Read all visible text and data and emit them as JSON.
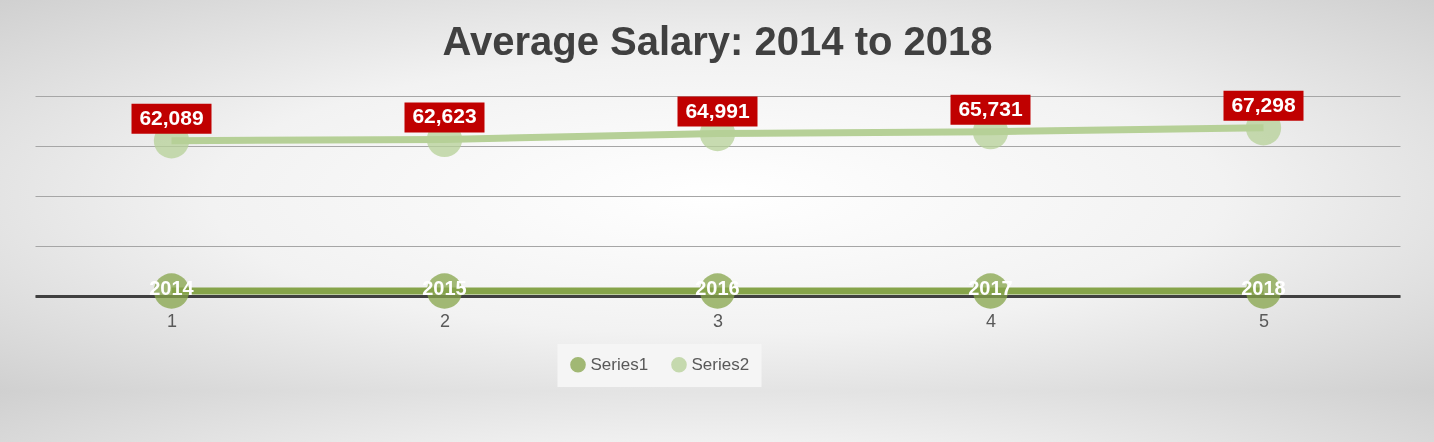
{
  "chart_data": {
    "type": "line",
    "title": "Average Salary: 2014 to 2018",
    "categories": [
      "1",
      "2",
      "3",
      "4",
      "5"
    ],
    "series": [
      {
        "name": "Series1",
        "color": "#86a44a",
        "values": [
          2014,
          2015,
          2016,
          2017,
          2018
        ],
        "value_labels": [
          "2014",
          "2015",
          "2016",
          "2017",
          "2018"
        ]
      },
      {
        "name": "Series2",
        "color": "#b6d097",
        "values": [
          62089,
          62623,
          64991,
          65731,
          67298
        ],
        "value_labels": [
          "62,089",
          "62,623",
          "64,991",
          "65,731",
          "67,298"
        ]
      }
    ],
    "tick_labels": "x",
    "grid": "y",
    "legend": "bottom",
    "marker": "circle"
  }
}
